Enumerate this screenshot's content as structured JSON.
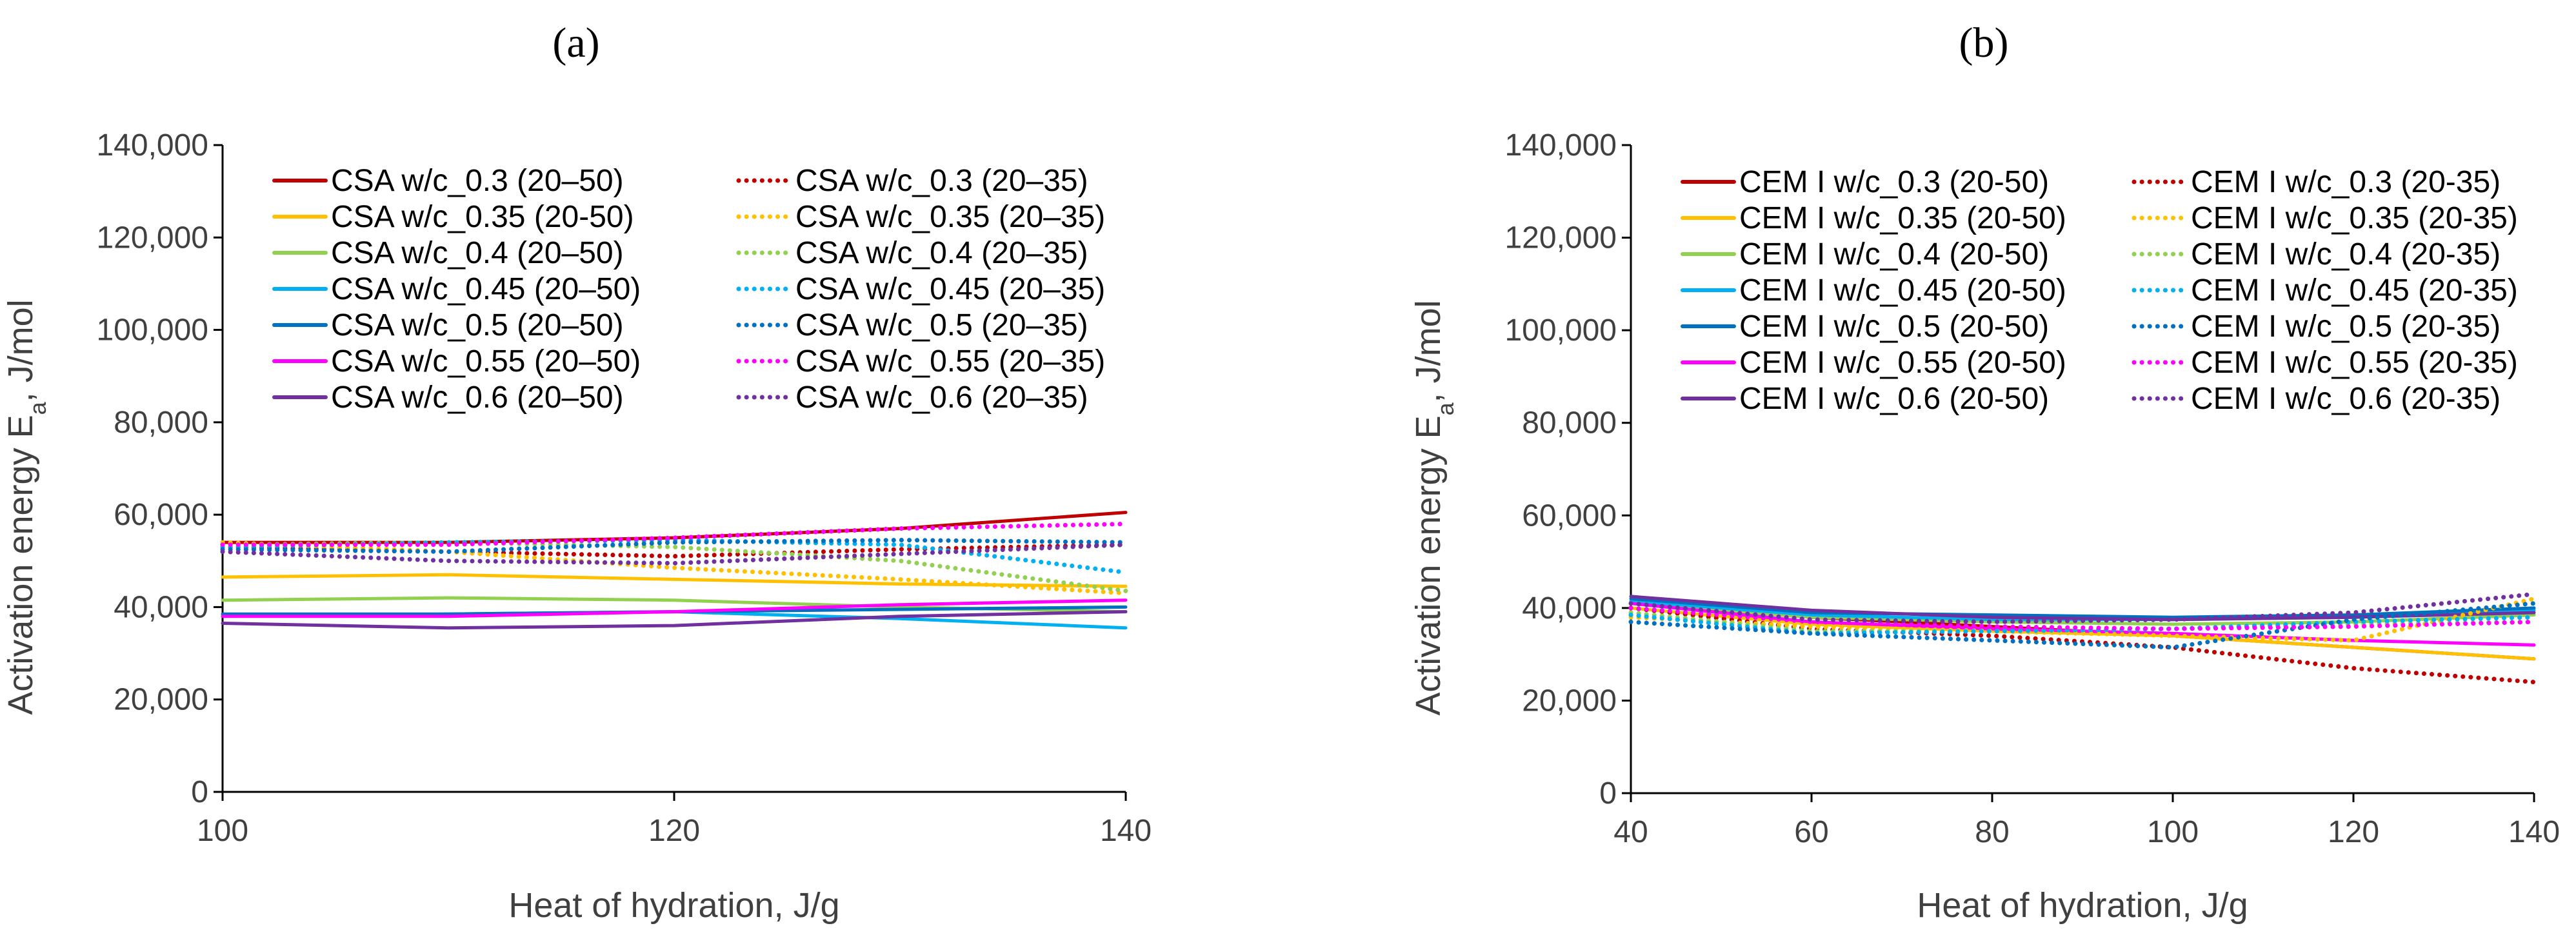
{
  "chart_data": [
    {
      "type": "line",
      "panel_label": "(a)",
      "xlabel": "Heat of hydration, J/g",
      "ylabel_main": "Activation energy E",
      "ylabel_sub": "a",
      "ylabel_unit": ",  J/mol",
      "xlim": [
        100,
        140
      ],
      "ylim": [
        0,
        140000
      ],
      "xticks": [
        100,
        120,
        140
      ],
      "yticks": [
        0,
        20000,
        40000,
        60000,
        80000,
        100000,
        120000,
        140000
      ],
      "ytick_labels": [
        "0",
        "20,000",
        "40,000",
        "60,000",
        "80,000",
        "100,000",
        "120,000",
        "140,000"
      ],
      "grid": false,
      "legend_position": "top",
      "series": [
        {
          "name": "CSA w/c_0.3 (20–50)",
          "color": "#c00000",
          "style": "solid",
          "x": [
            100,
            110,
            120,
            130,
            140
          ],
          "y": [
            54000,
            54000,
            55000,
            57000,
            60500
          ]
        },
        {
          "name": "CSA w/c_0.35 (20-50)",
          "color": "#ffc000",
          "style": "solid",
          "x": [
            100,
            110,
            120,
            130,
            140
          ],
          "y": [
            46500,
            47000,
            46000,
            45000,
            44500
          ]
        },
        {
          "name": "CSA w/c_0.4 (20–50)",
          "color": "#92d050",
          "style": "solid",
          "x": [
            100,
            110,
            120,
            130,
            140
          ],
          "y": [
            41500,
            42000,
            41500,
            40000,
            39000
          ]
        },
        {
          "name": "CSA w/c_0.45 (20–50)",
          "color": "#00b0f0",
          "style": "solid",
          "x": [
            100,
            110,
            120,
            130,
            140
          ],
          "y": [
            38000,
            38500,
            39000,
            37500,
            35500
          ]
        },
        {
          "name": "CSA w/c_0.5 (20–50)",
          "color": "#0070c0",
          "style": "solid",
          "x": [
            100,
            110,
            120,
            130,
            140
          ],
          "y": [
            38500,
            38500,
            39000,
            39500,
            40000
          ]
        },
        {
          "name": "CSA w/c_0.55 (20–50)",
          "color": "#ff00ff",
          "style": "solid",
          "x": [
            100,
            110,
            120,
            130,
            140
          ],
          "y": [
            38000,
            38000,
            39000,
            40500,
            41500
          ]
        },
        {
          "name": "CSA w/c_0.6 (20–50)",
          "color": "#7030a0",
          "style": "solid",
          "x": [
            100,
            110,
            120,
            130,
            140
          ],
          "y": [
            36500,
            35500,
            36000,
            38000,
            39000
          ]
        },
        {
          "name": "CSA w/c_0.3 (20–35)",
          "color": "#c00000",
          "style": "dotted",
          "x": [
            100,
            110,
            120,
            130,
            140
          ],
          "y": [
            53000,
            52000,
            51000,
            52500,
            53500
          ]
        },
        {
          "name": "CSA w/c_0.35 (20–35)",
          "color": "#ffc000",
          "style": "dotted",
          "x": [
            100,
            110,
            120,
            130,
            140
          ],
          "y": [
            54000,
            52000,
            48500,
            46000,
            43000
          ]
        },
        {
          "name": "CSA w/c_0.4 (20–35)",
          "color": "#92d050",
          "style": "dotted",
          "x": [
            100,
            110,
            120,
            130,
            140
          ],
          "y": [
            53500,
            54000,
            53000,
            50000,
            43500
          ]
        },
        {
          "name": "CSA w/c_0.45 (20–35)",
          "color": "#00b0f0",
          "style": "dotted",
          "x": [
            100,
            110,
            120,
            130,
            140
          ],
          "y": [
            53000,
            54000,
            54500,
            53500,
            47500
          ]
        },
        {
          "name": "CSA w/c_0.5 (20–35)",
          "color": "#0070c0",
          "style": "dotted",
          "x": [
            100,
            110,
            120,
            130,
            140
          ],
          "y": [
            52500,
            52000,
            54000,
            54500,
            54000
          ]
        },
        {
          "name": "CSA w/c_0.55 (20–35)",
          "color": "#ff00ff",
          "style": "dotted",
          "x": [
            100,
            110,
            120,
            130,
            140
          ],
          "y": [
            53500,
            53500,
            55000,
            57000,
            58000
          ]
        },
        {
          "name": "CSA w/c_0.6 (20–35)",
          "color": "#7030a0",
          "style": "dotted",
          "x": [
            100,
            110,
            120,
            130,
            140
          ],
          "y": [
            52000,
            50000,
            49500,
            51500,
            53500
          ]
        }
      ]
    },
    {
      "type": "line",
      "panel_label": "(b)",
      "xlabel": "Heat of hydration, J/g",
      "ylabel_main": "Activation energy E",
      "ylabel_sub": "a",
      "ylabel_unit": ",  J/mol",
      "xlim": [
        40,
        140
      ],
      "ylim": [
        0,
        140000
      ],
      "xticks": [
        40,
        60,
        80,
        100,
        120,
        140
      ],
      "yticks": [
        0,
        20000,
        40000,
        60000,
        80000,
        100000,
        120000,
        140000
      ],
      "ytick_labels": [
        "0",
        "20,000",
        "40,000",
        "60,000",
        "80,000",
        "100,000",
        "120,000",
        "140,000"
      ],
      "grid": false,
      "legend_position": "top",
      "series": [
        {
          "name": "CEM I w/c_0.3 (20-50)",
          "color": "#c00000",
          "style": "solid",
          "x": [
            40,
            60,
            80,
            100,
            120,
            140
          ],
          "y": [
            41000,
            38000,
            36000,
            34000,
            31500,
            29000
          ]
        },
        {
          "name": "CEM I w/c_0.35 (20-50)",
          "color": "#ffc000",
          "style": "solid",
          "x": [
            40,
            60,
            80,
            100,
            120,
            140
          ],
          "y": [
            40000,
            36500,
            35000,
            34000,
            31500,
            29000
          ]
        },
        {
          "name": "CEM I w/c_0.4 (20-50)",
          "color": "#92d050",
          "style": "solid",
          "x": [
            40,
            60,
            80,
            100,
            120,
            140
          ],
          "y": [
            41000,
            38000,
            37000,
            36500,
            37000,
            38500
          ]
        },
        {
          "name": "CEM I w/c_0.45 (20-50)",
          "color": "#00b0f0",
          "style": "solid",
          "x": [
            40,
            60,
            80,
            100,
            120,
            140
          ],
          "y": [
            41500,
            38500,
            37500,
            37500,
            38000,
            39500
          ]
        },
        {
          "name": "CEM I w/c_0.5 (20-50)",
          "color": "#0070c0",
          "style": "solid",
          "x": [
            40,
            60,
            80,
            100,
            120,
            140
          ],
          "y": [
            42000,
            39000,
            38500,
            38000,
            38500,
            40000
          ]
        },
        {
          "name": "CEM I w/c_0.55 (20-50)",
          "color": "#ff00ff",
          "style": "solid",
          "x": [
            40,
            60,
            80,
            100,
            120,
            140
          ],
          "y": [
            41000,
            37000,
            35500,
            34500,
            33000,
            32000
          ]
        },
        {
          "name": "CEM I w/c_0.6 (20-50)",
          "color": "#7030a0",
          "style": "solid",
          "x": [
            40,
            60,
            80,
            100,
            120,
            140
          ],
          "y": [
            42500,
            39500,
            38000,
            37500,
            38000,
            39000
          ]
        },
        {
          "name": "CEM I w/c_0.3 (20-35)",
          "color": "#c00000",
          "style": "dotted",
          "x": [
            40,
            60,
            80,
            100,
            120,
            140
          ],
          "y": [
            40000,
            35500,
            34000,
            31500,
            27000,
            24000
          ]
        },
        {
          "name": "CEM I w/c_0.35 (20-35)",
          "color": "#ffc000",
          "style": "dotted",
          "x": [
            40,
            60,
            80,
            100,
            120,
            140
          ],
          "y": [
            38000,
            36000,
            35000,
            34000,
            33000,
            42000
          ]
        },
        {
          "name": "CEM I w/c_0.4 (20-35)",
          "color": "#92d050",
          "style": "dotted",
          "x": [
            40,
            60,
            80,
            100,
            120,
            140
          ],
          "y": [
            39000,
            35000,
            35000,
            35500,
            36500,
            37000
          ]
        },
        {
          "name": "CEM I w/c_0.45 (20-35)",
          "color": "#00b0f0",
          "style": "dotted",
          "x": [
            40,
            60,
            80,
            100,
            120,
            140
          ],
          "y": [
            38500,
            34500,
            35000,
            35500,
            37000,
            38000
          ]
        },
        {
          "name": "CEM I w/c_0.5 (20-35)",
          "color": "#0070c0",
          "style": "dotted",
          "x": [
            40,
            60,
            80,
            100,
            120,
            140
          ],
          "y": [
            37000,
            34500,
            33000,
            31500,
            37500,
            41000
          ]
        },
        {
          "name": "CEM I w/c_0.55 (20-35)",
          "color": "#ff00ff",
          "style": "dotted",
          "x": [
            40,
            60,
            80,
            100,
            120,
            140
          ],
          "y": [
            40000,
            37000,
            36000,
            35500,
            36000,
            37000
          ]
        },
        {
          "name": "CEM I w/c_0.6 (20-35)",
          "color": "#7030a0",
          "style": "dotted",
          "x": [
            40,
            60,
            80,
            100,
            120,
            140
          ],
          "y": [
            41000,
            37500,
            37000,
            37500,
            39000,
            43000
          ]
        }
      ]
    }
  ]
}
